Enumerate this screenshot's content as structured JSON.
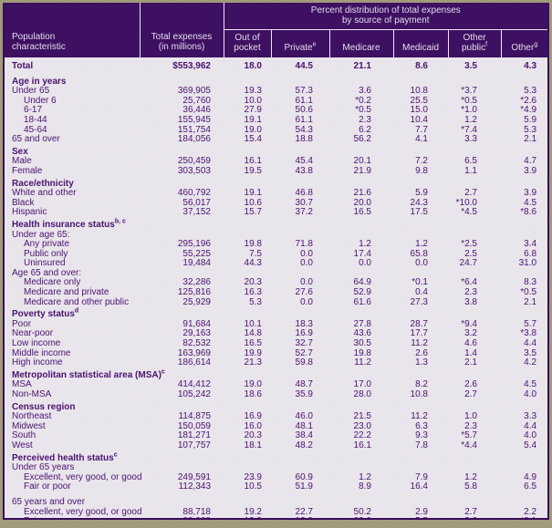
{
  "theme": {
    "header_bg": "#350a52",
    "header_text": "#e4dcee",
    "body_bg": "#ded9e2",
    "body_text": "#4a1270",
    "frame_border": "#3a0c5c",
    "page_bg": "#8f8768"
  },
  "table": {
    "header": {
      "population_line1": "Population",
      "population_line2": "characteristic",
      "total_expenses_line1": "Total expenses",
      "total_expenses_line2": "(in millions)",
      "group_line1": "Percent distribution of total expenses",
      "group_line2": "by source of payment",
      "payment_columns": [
        {
          "label": "Out of pocket",
          "sup": ""
        },
        {
          "label": "Private",
          "sup": "e"
        },
        {
          "label": "Medicare",
          "sup": ""
        },
        {
          "label": "Medicaid",
          "sup": ""
        },
        {
          "label": "Other public",
          "sup": "f"
        },
        {
          "label": "Other",
          "sup": "g"
        }
      ]
    },
    "rows": [
      {
        "type": "total",
        "label": "Total",
        "values": [
          "$553,962",
          "18.0",
          "44.5",
          "21.1",
          "8.6",
          "3.5",
          "4.3"
        ]
      },
      {
        "type": "section",
        "label": "Age in years",
        "sup": ""
      },
      {
        "type": "data",
        "indent": 0,
        "label": "Under 65",
        "values": [
          "369,905",
          "19.3",
          "57.3",
          "3.6",
          "10.8",
          "*3.7",
          "5.3"
        ]
      },
      {
        "type": "data",
        "indent": 1,
        "label": "Under 6",
        "values": [
          "25,760",
          "10.0",
          "61.1",
          "*0.2",
          "25.5",
          "*0.5",
          "*2.6"
        ]
      },
      {
        "type": "data",
        "indent": 1,
        "label": "6-17",
        "values": [
          "36,446",
          "27.9",
          "50.6",
          "*0.5",
          "15.0",
          "*1.0",
          "*4.9"
        ]
      },
      {
        "type": "data",
        "indent": 1,
        "label": "18-44",
        "values": [
          "155,945",
          "19.1",
          "61.1",
          "2.3",
          "10.4",
          "1.2",
          "5.9"
        ]
      },
      {
        "type": "data",
        "indent": 1,
        "label": "45-64",
        "values": [
          "151,754",
          "19.0",
          "54.3",
          "6.2",
          "7.7",
          "*7.4",
          "5.3"
        ]
      },
      {
        "type": "data",
        "indent": 0,
        "label": "65 and over",
        "values": [
          "184,056",
          "15.4",
          "18.8",
          "56.2",
          "4.1",
          "3.3",
          "2.1"
        ]
      },
      {
        "type": "section",
        "label": "Sex",
        "sup": ""
      },
      {
        "type": "data",
        "indent": 0,
        "label": "Male",
        "values": [
          "250,459",
          "16.1",
          "45.4",
          "20.1",
          "7.2",
          "6.5",
          "4.7"
        ]
      },
      {
        "type": "data",
        "indent": 0,
        "label": "Female",
        "values": [
          "303,503",
          "19.5",
          "43.8",
          "21.9",
          "9.8",
          "1.1",
          "3.9"
        ]
      },
      {
        "type": "section",
        "label": "Race/ethnicity",
        "sup": ""
      },
      {
        "type": "data",
        "indent": 0,
        "label": "White and other",
        "values": [
          "460,792",
          "19.1",
          "46.8",
          "21.6",
          "5.9",
          "2.7",
          "3.9"
        ]
      },
      {
        "type": "data",
        "indent": 0,
        "label": "Black",
        "values": [
          "56,017",
          "10.6",
          "30.7",
          "20.0",
          "24.3",
          "*10.0",
          "4.5"
        ]
      },
      {
        "type": "data",
        "indent": 0,
        "label": "Hispanic",
        "values": [
          "37,152",
          "15.7",
          "37.2",
          "16.5",
          "17.5",
          "*4.5",
          "*8.6"
        ]
      },
      {
        "type": "section",
        "label": "Health insurance status",
        "sup": "b, c"
      },
      {
        "type": "sublabel",
        "label": "Under age 65:",
        "sup": ""
      },
      {
        "type": "data",
        "indent": 1,
        "label": "Any private",
        "values": [
          "295,196",
          "19.8",
          "71.8",
          "1.2",
          "1.2",
          "*2.5",
          "3.4"
        ]
      },
      {
        "type": "data",
        "indent": 1,
        "label": "Public only",
        "values": [
          "55,225",
          "7.5",
          "0.0",
          "17.4",
          "65.8",
          "2.5",
          "6.8"
        ]
      },
      {
        "type": "data",
        "indent": 1,
        "label": "Uninsured",
        "values": [
          "19,484",
          "44.3",
          "0.0",
          "0.0",
          "0.0",
          "24.7",
          "31.0"
        ]
      },
      {
        "type": "sublabel",
        "label": "Age 65 and over:",
        "sup": ""
      },
      {
        "type": "data",
        "indent": 1,
        "label": "Medicare only",
        "values": [
          "32,286",
          "20.3",
          "0.0",
          "64.9",
          "*0.1",
          "*6.4",
          "8.3"
        ]
      },
      {
        "type": "data",
        "indent": 1,
        "label": "Medicare and private",
        "values": [
          "125,816",
          "16.3",
          "27.6",
          "52.9",
          "0.4",
          "2.3",
          "*0.5"
        ]
      },
      {
        "type": "data",
        "indent": 1,
        "label": "Medicare and other public",
        "values": [
          "25,929",
          "5.3",
          "0.0",
          "61.6",
          "27.3",
          "3.8",
          "2.1"
        ]
      },
      {
        "type": "section",
        "label": "Poverty status",
        "sup": "d"
      },
      {
        "type": "data",
        "indent": 0,
        "label": "Poor",
        "values": [
          "91,684",
          "10.1",
          "18.3",
          "27.8",
          "28.7",
          "*9.4",
          "5.7"
        ]
      },
      {
        "type": "data",
        "indent": 0,
        "label": "Near-poor",
        "values": [
          "29,163",
          "14.8",
          "16.9",
          "43.6",
          "17.7",
          "3.2",
          "*3.8"
        ]
      },
      {
        "type": "data",
        "indent": 0,
        "label": "Low income",
        "values": [
          "82,532",
          "16.5",
          "32.7",
          "30.5",
          "11.2",
          "4.6",
          "4.4"
        ]
      },
      {
        "type": "data",
        "indent": 0,
        "label": "Middle income",
        "values": [
          "163,969",
          "19.9",
          "52.7",
          "19.8",
          "2.6",
          "1.4",
          "3.5"
        ]
      },
      {
        "type": "data",
        "indent": 0,
        "label": "High income",
        "values": [
          "186,614",
          "21.3",
          "59.8",
          "11.2",
          "1.3",
          "2.1",
          "4.2"
        ]
      },
      {
        "type": "section",
        "label": "Metropolitan statistical area (MSA)",
        "sup": "c"
      },
      {
        "type": "data",
        "indent": 0,
        "label": "MSA",
        "values": [
          "414,412",
          "19.0",
          "48.7",
          "17.0",
          "8.2",
          "2.6",
          "4.5"
        ]
      },
      {
        "type": "data",
        "indent": 0,
        "label": "Non-MSA",
        "values": [
          "105,242",
          "18.6",
          "35.9",
          "28.0",
          "10.8",
          "2.7",
          "4.0"
        ]
      },
      {
        "type": "section",
        "label": "Census region",
        "sup": ""
      },
      {
        "type": "data",
        "indent": 0,
        "label": "Northeast",
        "values": [
          "114,875",
          "16.9",
          "46.0",
          "21.5",
          "11.2",
          "1.0",
          "3.3"
        ]
      },
      {
        "type": "data",
        "indent": 0,
        "label": "Midwest",
        "values": [
          "150,059",
          "16.0",
          "48.1",
          "23.0",
          "6.3",
          "2.3",
          "4.4"
        ]
      },
      {
        "type": "data",
        "indent": 0,
        "label": "South",
        "values": [
          "181,271",
          "20.3",
          "38.4",
          "22.2",
          "9.3",
          "*5.7",
          "4.0"
        ]
      },
      {
        "type": "data",
        "indent": 0,
        "label": "West",
        "values": [
          "107,757",
          "18.1",
          "48.2",
          "16.1",
          "7.8",
          "*4.4",
          "5.4"
        ]
      },
      {
        "type": "section",
        "label": "Perceived health status",
        "sup": "c"
      },
      {
        "type": "sublabel",
        "label": "Under 65 years",
        "sup": ""
      },
      {
        "type": "data",
        "indent": 1,
        "label": "Excellent, very good, or good",
        "values": [
          "249,591",
          "23.9",
          "60.9",
          "1.2",
          "7.9",
          "1.2",
          "4.9"
        ]
      },
      {
        "type": "data",
        "indent": 1,
        "label": "Fair or poor",
        "values": [
          "112,343",
          "10.5",
          "51.9",
          "8.9",
          "16.4",
          "5.8",
          "6.5"
        ]
      },
      {
        "type": "spacer"
      },
      {
        "type": "sublabel",
        "label": "65 years and over",
        "sup": ""
      },
      {
        "type": "data",
        "indent": 1,
        "label": "Excellent, very good, or good",
        "values": [
          "88,718",
          "19.2",
          "22.7",
          "50.2",
          "2.9",
          "2.7",
          "2.2"
        ]
      },
      {
        "type": "data",
        "indent": 1,
        "label": "Fair or poor",
        "values": [
          "88,008",
          "12.9",
          "13.9",
          "62.0",
          "5.5",
          "3.6",
          "*2.1"
        ]
      }
    ]
  }
}
